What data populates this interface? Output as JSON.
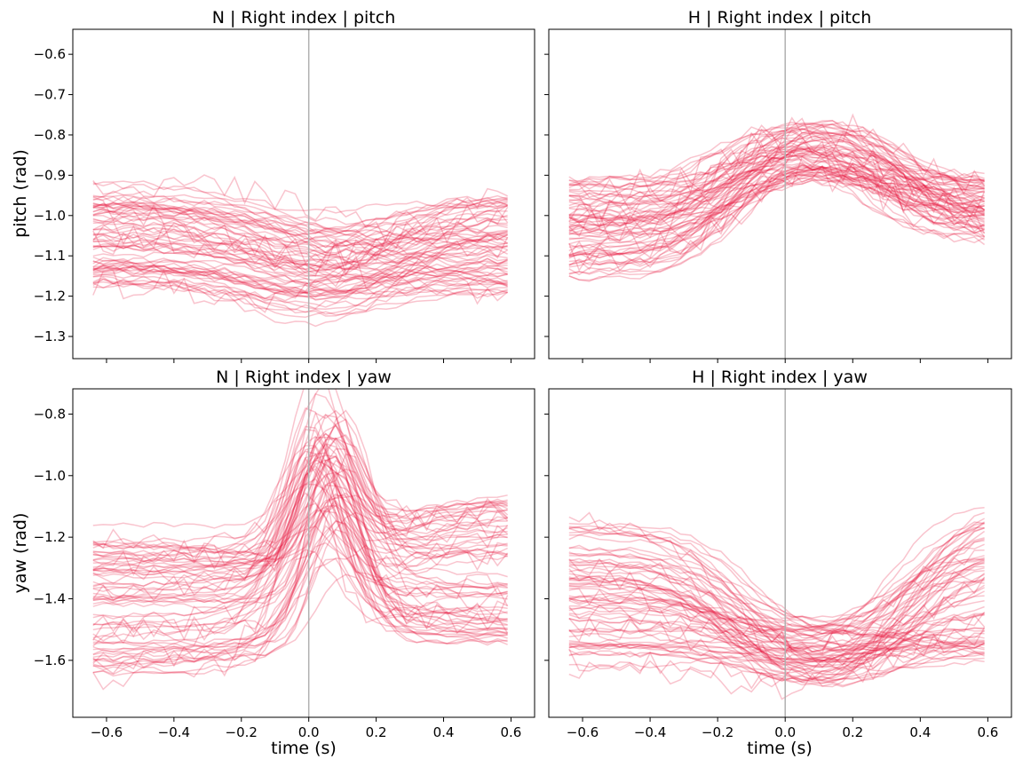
{
  "chart_data": [
    {
      "type": "line",
      "title": "N | Right index | pitch",
      "xlabel": "",
      "ylabel": "pitch (rad)",
      "xlim": [
        -0.7,
        0.67
      ],
      "ylim": [
        -1.355,
        -0.538
      ],
      "xticks": [
        -0.6,
        -0.4,
        -0.2,
        0.0,
        0.2,
        0.4,
        0.6
      ],
      "yticks": [
        -0.6,
        -0.7,
        -0.8,
        -0.9,
        -1.0,
        -1.1,
        -1.2,
        -1.3
      ],
      "ytick_labels": [
        "−0.6",
        "−0.7",
        "−0.8",
        "−0.9",
        "−1.0",
        "−1.1",
        "−1.2",
        "−1.3"
      ],
      "show_xtick_labels": false,
      "show_ytick_labels": true,
      "vline_x": 0.0,
      "line_color": "#e8143c",
      "profile": {
        "kind": "dip",
        "center": 0.02,
        "width": 0.1,
        "extent": [
          0.05,
          0.14
        ],
        "end_range": [
          -0.95,
          -1.2
        ],
        "start_range": [
          -0.91,
          -1.17
        ]
      },
      "series_count": 70,
      "seed": 11
    },
    {
      "type": "line",
      "title": "H | Right index | pitch",
      "xlabel": "",
      "ylabel": "",
      "xlim": [
        -0.7,
        0.67
      ],
      "ylim": [
        -1.355,
        -0.538
      ],
      "xticks": [
        -0.6,
        -0.4,
        -0.2,
        0.0,
        0.2,
        0.4,
        0.6
      ],
      "yticks": [
        -0.6,
        -0.7,
        -0.8,
        -0.9,
        -1.0,
        -1.1,
        -1.2,
        -1.3
      ],
      "ytick_labels": [
        "−0.6",
        "−0.7",
        "−0.8",
        "−0.9",
        "−1.0",
        "−1.1",
        "−1.2",
        "−1.3"
      ],
      "show_xtick_labels": false,
      "show_ytick_labels": false,
      "vline_x": 0.0,
      "line_color": "#e8143c",
      "profile": {
        "kind": "bump",
        "rise_center": -0.17,
        "fall_center": 0.3,
        "width": 0.08,
        "peak_range": [
          -0.75,
          -0.9
        ],
        "start_range": [
          -0.91,
          -1.16
        ],
        "end_range": [
          -0.9,
          -1.07
        ]
      },
      "series_count": 70,
      "seed": 23
    },
    {
      "type": "line",
      "title": "N | Right index | yaw",
      "xlabel": "time (s)",
      "ylabel": "yaw (rad)",
      "xlim": [
        -0.7,
        0.67
      ],
      "ylim": [
        -1.785,
        -0.718
      ],
      "xticks": [
        -0.6,
        -0.4,
        -0.2,
        0.0,
        0.2,
        0.4,
        0.6
      ],
      "xtick_labels": [
        "−0.6",
        "−0.4",
        "−0.2",
        "0.0",
        "0.2",
        "0.4",
        "0.6"
      ],
      "yticks": [
        -0.8,
        -1.0,
        -1.2,
        -1.4,
        -1.6
      ],
      "ytick_labels": [
        "−0.8",
        "−1.0",
        "−1.2",
        "−1.4",
        "−1.6"
      ],
      "show_xtick_labels": true,
      "show_ytick_labels": true,
      "vline_x": 0.0,
      "line_color": "#e8143c",
      "profile": {
        "kind": "peak",
        "center": 0.05,
        "width": 0.12,
        "extent": [
          0.18,
          0.55
        ],
        "start_range": [
          -1.14,
          -1.66
        ],
        "end_range": [
          -1.05,
          -1.55
        ]
      },
      "series_count": 70,
      "seed": 37
    },
    {
      "type": "line",
      "title": "H | Right index | yaw",
      "xlabel": "time (s)",
      "ylabel": "",
      "xlim": [
        -0.7,
        0.67
      ],
      "ylim": [
        -1.785,
        -0.718
      ],
      "xticks": [
        -0.6,
        -0.4,
        -0.2,
        0.0,
        0.2,
        0.4,
        0.6
      ],
      "xtick_labels": [
        "−0.6",
        "−0.4",
        "−0.2",
        "0.0",
        "0.2",
        "0.4",
        "0.6"
      ],
      "yticks": [
        -0.8,
        -1.0,
        -1.2,
        -1.4,
        -1.6
      ],
      "ytick_labels": [
        "−0.8",
        "−1.0",
        "−1.2",
        "−1.4",
        "−1.6"
      ],
      "show_xtick_labels": true,
      "show_ytick_labels": false,
      "vline_x": 0.0,
      "line_color": "#e8143c",
      "profile": {
        "kind": "dip2",
        "fall_center": -0.15,
        "rise_center": 0.36,
        "width": 0.09,
        "floor_range": [
          -1.48,
          -1.72
        ],
        "start_range": [
          -1.12,
          -1.64
        ],
        "end_range": [
          -1.05,
          -1.62
        ]
      },
      "series_count": 70,
      "seed": 53
    }
  ]
}
